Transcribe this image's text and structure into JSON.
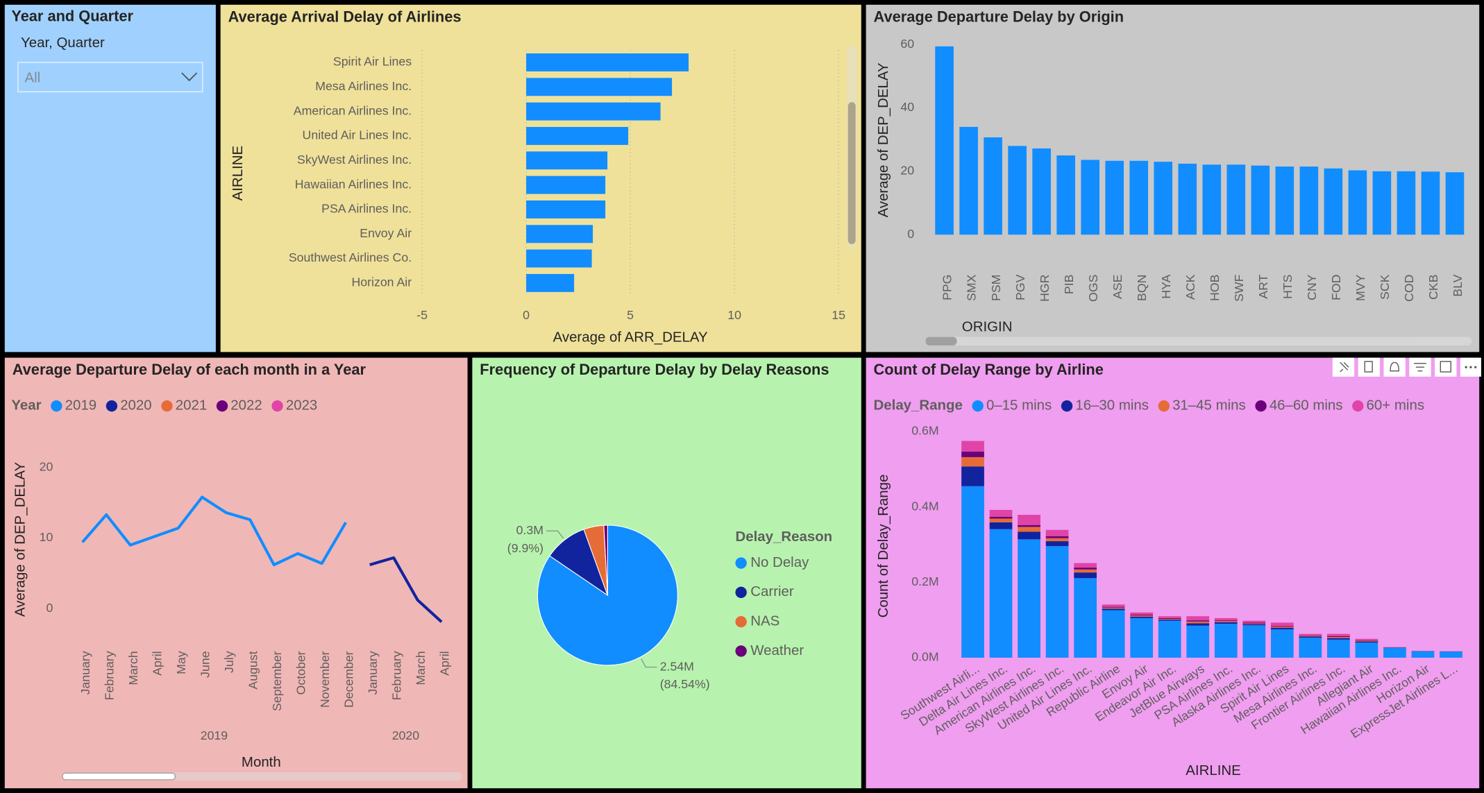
{
  "slicer": {
    "title": "Year and Quarter",
    "label": "Year, Quarter",
    "value": "All"
  },
  "chart_data": [
    {
      "type": "hbar",
      "title": "Average Arrival Delay of Airlines",
      "categories": [
        "Spirit Air Lines",
        "Mesa Airlines Inc.",
        "American Airlines Inc.",
        "United Air Lines Inc.",
        "SkyWest Airlines Inc.",
        "Hawaiian Airlines Inc.",
        "PSA Airlines Inc.",
        "Envoy Air",
        "Southwest Airlines Co.",
        "Horizon Air"
      ],
      "values": [
        7.8,
        7.0,
        6.45,
        4.9,
        3.9,
        3.8,
        3.8,
        3.2,
        3.15,
        2.3
      ],
      "color": "#118dff",
      "xlim": [
        -5,
        15
      ],
      "xticks": [
        -5,
        0,
        5,
        10,
        15
      ],
      "grid": true,
      "x_label": "Average of ARR_DELAY",
      "y_label": "AIRLINE"
    },
    {
      "type": "bar",
      "title": "Average Departure Delay by Origin",
      "categories": [
        "PPG",
        "SMX",
        "PSM",
        "PGV",
        "HGR",
        "PIB",
        "OGS",
        "ASE",
        "BQN",
        "HYA",
        "ACK",
        "HOB",
        "SWF",
        "ART",
        "HTS",
        "CNY",
        "FOD",
        "MVY",
        "SCK",
        "COD",
        "CKB",
        "BLV"
      ],
      "values": [
        59.4,
        34,
        30.7,
        28,
        27.2,
        25,
        23.6,
        23.3,
        23.3,
        23,
        22.4,
        22.1,
        22.1,
        21.8,
        21.5,
        21.5,
        20.9,
        20.3,
        20,
        20,
        19.9,
        19.7
      ],
      "color": "#118dff",
      "ylim": [
        0,
        60
      ],
      "yticks": [
        0,
        20,
        40,
        60
      ],
      "grid": false,
      "x_label": "ORIGIN",
      "y_label": "Average of DEP_DELAY"
    },
    {
      "type": "line",
      "title": "Average Departure Delay of each month in a Year",
      "legend_title": "Year",
      "categories": [
        "January",
        "February",
        "March",
        "April",
        "May",
        "June",
        "July",
        "August",
        "September",
        "October",
        "November",
        "December",
        "January",
        "February",
        "March",
        "April"
      ],
      "x_groups": [
        {
          "label": "2019",
          "span": 12
        },
        {
          "label": "2020",
          "span": 4
        }
      ],
      "series": [
        {
          "name": "2019",
          "color": "#118dff",
          "values": [
            9.4,
            13.3,
            9,
            10.2,
            11.4,
            15.8,
            13.6,
            12.6,
            6.2,
            7.8,
            6.4,
            12.2,
            null,
            null,
            null,
            null
          ]
        },
        {
          "name": "2020",
          "color": "#12239e",
          "values": [
            null,
            null,
            null,
            null,
            null,
            null,
            null,
            null,
            null,
            null,
            null,
            null,
            6.2,
            7.2,
            1.2,
            -1.9
          ]
        },
        {
          "name": "2021",
          "color": "#e66c37",
          "values": [
            null,
            null,
            null,
            null,
            null,
            null,
            null,
            null,
            null,
            null,
            null,
            null,
            null,
            null,
            null,
            null
          ]
        },
        {
          "name": "2022",
          "color": "#6b007b",
          "values": [
            null,
            null,
            null,
            null,
            null,
            null,
            null,
            null,
            null,
            null,
            null,
            null,
            null,
            null,
            null,
            null
          ]
        },
        {
          "name": "2023",
          "color": "#e044a7",
          "values": [
            null,
            null,
            null,
            null,
            null,
            null,
            null,
            null,
            null,
            null,
            null,
            null,
            null,
            null,
            null,
            null
          ]
        }
      ],
      "ylim": [
        -3,
        23
      ],
      "yticks": [
        0,
        10,
        20
      ],
      "grid": false,
      "x_label": "Month",
      "y_label": "Average of DEP_DELAY"
    },
    {
      "type": "pie",
      "title": "Frequency of Departure Delay by Delay Reasons",
      "legend_title": "Delay_Reason",
      "categories": [
        "No Delay",
        "Carrier",
        "NAS",
        "Weather"
      ],
      "values": [
        2540000,
        300000,
        140000,
        26000
      ],
      "value_labels": [
        "2.54M",
        "0.3M",
        null,
        null
      ],
      "percent_labels": [
        "(84.54%)",
        "(9.9%)",
        null,
        null
      ],
      "colors": [
        "#118dff",
        "#12239e",
        "#e66c37",
        "#6b007b"
      ]
    },
    {
      "type": "stacked_bar",
      "title": "Count of Delay Range by Airline",
      "legend_title": "Delay_Range",
      "categories": [
        "Southwest Airli...",
        "Delta Air Lines Inc.",
        "American Airlines Inc.",
        "SkyWest Airlines Inc.",
        "United Air Lines Inc.",
        "Republic Airline",
        "Envoy Air",
        "Endeavor Air Inc.",
        "JetBlue Airways",
        "PSA Airlines Inc.",
        "Alaska Airlines Inc.",
        "Spirit Air Lines",
        "Mesa Airlines Inc.",
        "Frontier Airlines Inc.",
        "Allegiant Air",
        "Hawaiian Airlines Inc.",
        "Horizon Air",
        "ExpressJet Airlines L..."
      ],
      "series": [
        {
          "name": "0–15 mins",
          "color": "#118dff",
          "values": [
            455000,
            341000,
            314000,
            296000,
            211000,
            126000,
            105000,
            98000,
            85000,
            90000,
            86000,
            75000,
            53000,
            48000,
            40000,
            26000,
            17000,
            16000
          ]
        },
        {
          "name": "16–30 mins",
          "color": "#12239e",
          "values": [
            52000,
            18000,
            20000,
            13000,
            15000,
            4000,
            4000,
            3000,
            6000,
            4000,
            3000,
            4000,
            3000,
            4000,
            3000,
            1000,
            500,
            500
          ]
        },
        {
          "name": "31–45 mins",
          "color": "#e66c37",
          "values": [
            25000,
            10000,
            13000,
            8000,
            8000,
            3000,
            3000,
            2000,
            5000,
            3000,
            2000,
            3000,
            2000,
            3000,
            2000,
            500,
            200,
            200
          ]
        },
        {
          "name": "46–60 mins",
          "color": "#6b007b",
          "values": [
            15000,
            5000,
            5000,
            5000,
            5000,
            2000,
            2000,
            2000,
            3000,
            2000,
            2000,
            2000,
            1000,
            2000,
            1000,
            200,
            100,
            100
          ]
        },
        {
          "name": "60+ mins",
          "color": "#e044a7",
          "values": [
            28000,
            18000,
            27000,
            17000,
            12000,
            6000,
            6000,
            5000,
            11000,
            6000,
            5000,
            9000,
            4000,
            6000,
            4000,
            300,
            200,
            200
          ]
        }
      ],
      "ylim": [
        0,
        600000
      ],
      "yticks": [
        {
          "value": 0,
          "label": "0.0M"
        },
        {
          "value": 200000,
          "label": "0.2M"
        },
        {
          "value": 400000,
          "label": "0.4M"
        },
        {
          "value": 600000,
          "label": "0.6M"
        }
      ],
      "grid": false,
      "x_label": "AIRLINE",
      "y_label": "Count of Delay_Range"
    }
  ]
}
